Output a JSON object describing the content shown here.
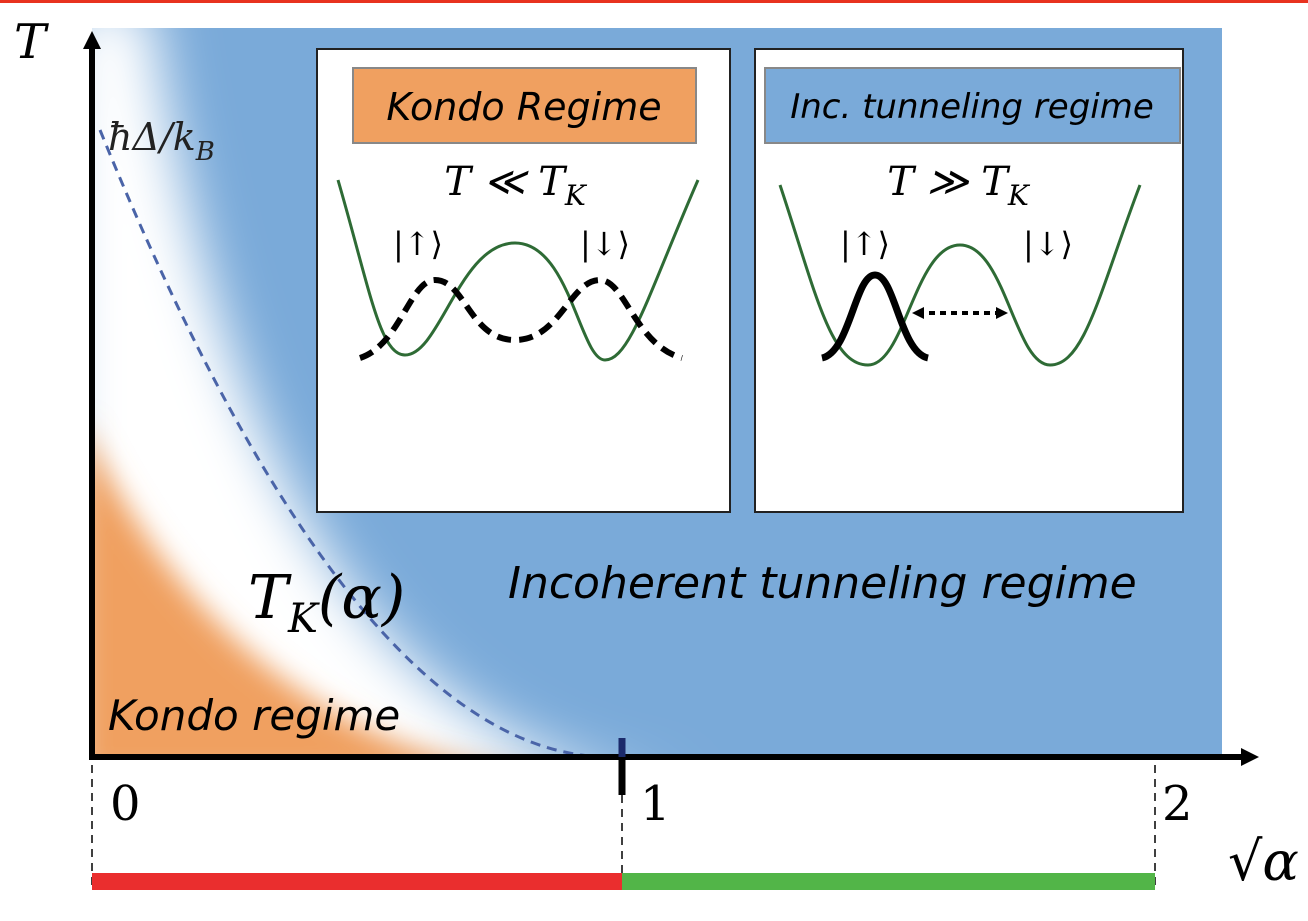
{
  "axes": {
    "y_label": "T",
    "x_label": "√α",
    "x_ticks": [
      "0",
      "1",
      "2"
    ]
  },
  "curve_label": {
    "text": "T",
    "sub": "K",
    "tail": "(α)"
  },
  "scale_label": {
    "text": "ħΔ/k",
    "sub": "B"
  },
  "regions": {
    "incoherent": "Incoherent tunneling  regime",
    "kondo": "Kondo regime"
  },
  "insets": [
    {
      "title": "Kondo Regime",
      "condition": {
        "text": "T ≪ T",
        "sub": "K"
      },
      "left_state": "|↑⟩",
      "right_state": "|↓⟩"
    },
    {
      "title": "Inc. tunneling regime",
      "condition": {
        "text": "T ≫ T",
        "sub": "K"
      },
      "left_state": "|↑⟩",
      "right_state": "|↓⟩"
    }
  ]
}
